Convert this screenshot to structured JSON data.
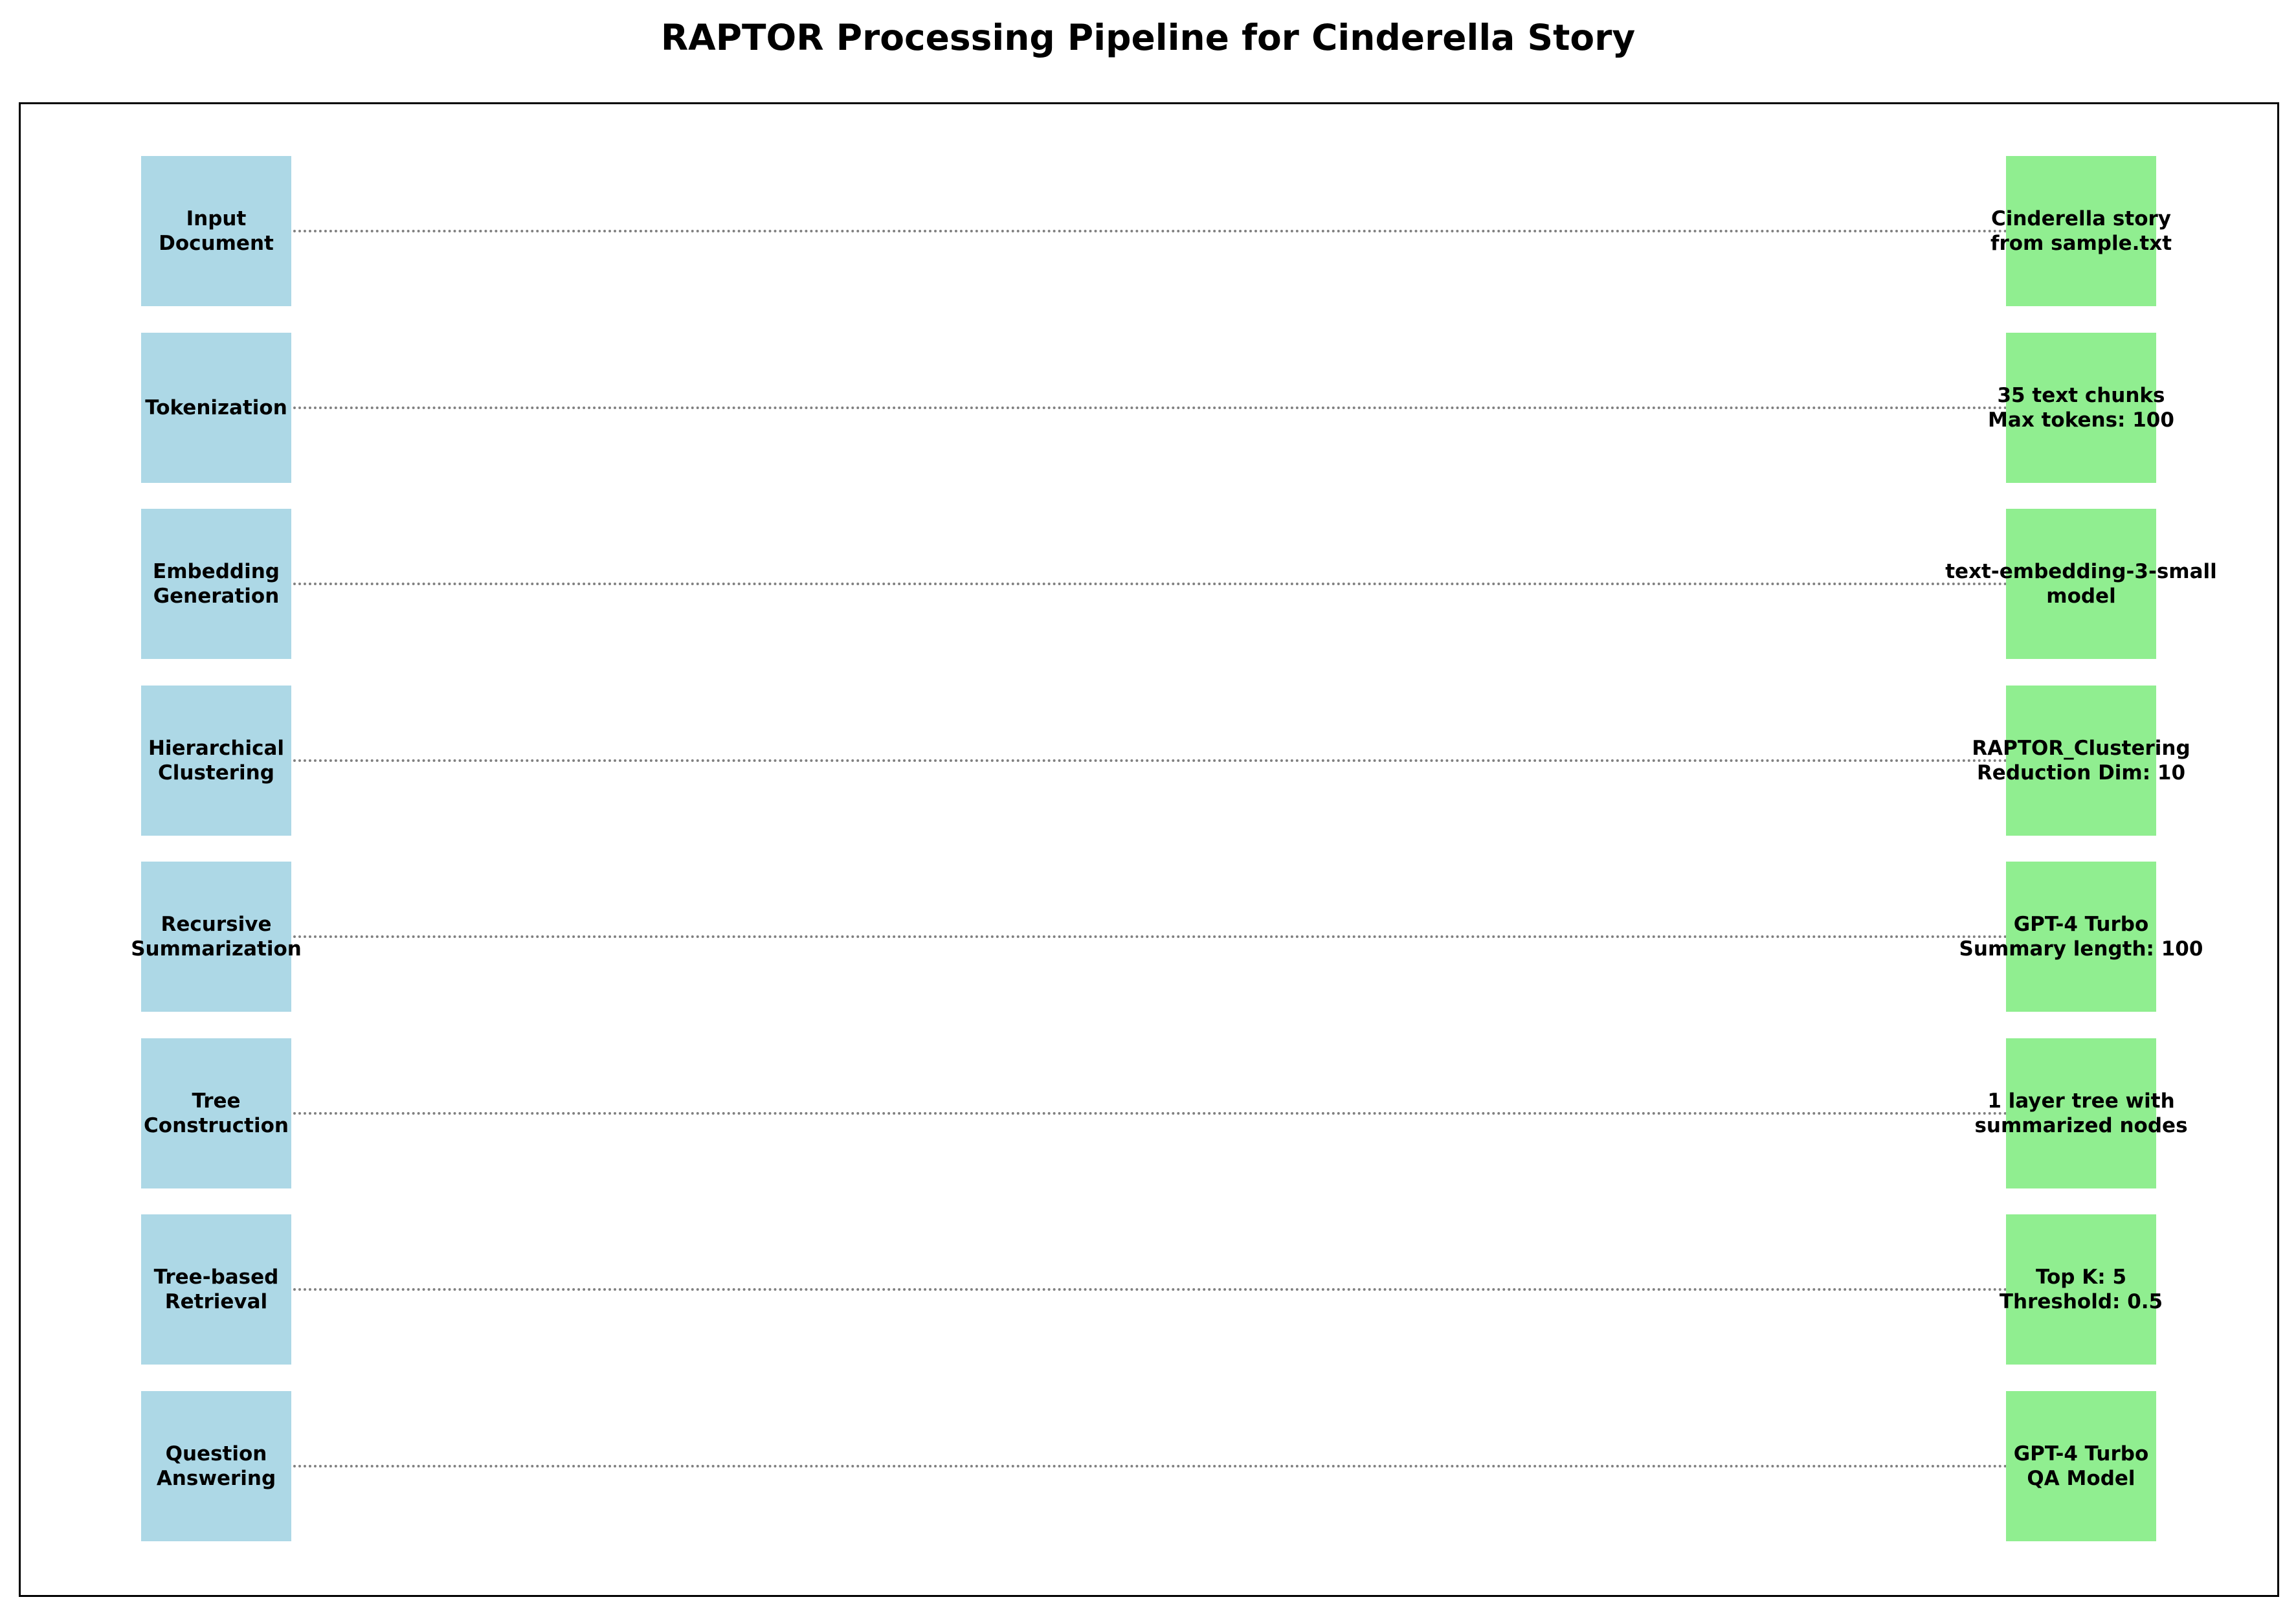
{
  "title": "RAPTOR Processing Pipeline for Cinderella Story",
  "colors": {
    "stage": "#add8e6",
    "detail": "#90ee90",
    "connector": "#808080"
  },
  "steps": [
    {
      "stage": "Input\nDocument",
      "detail": "Cinderella story\nfrom sample.txt"
    },
    {
      "stage": "Tokenization",
      "detail": "35 text chunks\nMax tokens: 100"
    },
    {
      "stage": "Embedding\nGeneration",
      "detail": "text-embedding-3-small\nmodel"
    },
    {
      "stage": "Hierarchical\nClustering",
      "detail": "RAPTOR_Clustering\nReduction Dim: 10"
    },
    {
      "stage": "Recursive\nSummarization",
      "detail": "GPT-4 Turbo\nSummary length: 100"
    },
    {
      "stage": "Tree\nConstruction",
      "detail": "1 layer tree with\nsummarized nodes"
    },
    {
      "stage": "Tree-based\nRetrieval",
      "detail": "Top K: 5\nThreshold: 0.5"
    },
    {
      "stage": "Question\nAnswering",
      "detail": "GPT-4 Turbo\nQA Model"
    }
  ]
}
